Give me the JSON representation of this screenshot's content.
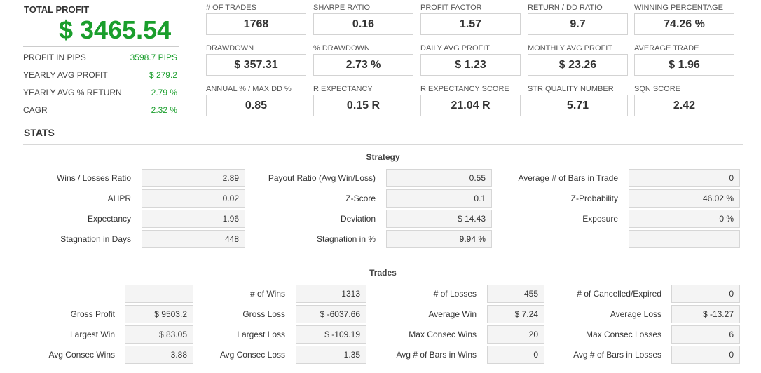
{
  "summary": {
    "total_profit_label": "TOTAL PROFIT",
    "total_profit_value": "$ 3465.54",
    "rows": [
      {
        "label": "PROFIT IN PIPS",
        "value": "3598.7 PIPS"
      },
      {
        "label": "YEARLY AVG PROFIT",
        "value": "$ 279.2"
      },
      {
        "label": "YEARLY AVG % RETURN",
        "value": "2.79 %"
      },
      {
        "label": "CAGR",
        "value": "2.32 %"
      }
    ]
  },
  "metrics": [
    [
      {
        "label": "# OF TRADES",
        "value": "1768"
      },
      {
        "label": "SHARPE RATIO",
        "value": "0.16"
      },
      {
        "label": "PROFIT FACTOR",
        "value": "1.57"
      },
      {
        "label": "RETURN / DD RATIO",
        "value": "9.7"
      },
      {
        "label": "WINNING PERCENTAGE",
        "value": "74.26 %"
      }
    ],
    [
      {
        "label": "DRAWDOWN",
        "value": "$ 357.31"
      },
      {
        "label": "% DRAWDOWN",
        "value": "2.73 %"
      },
      {
        "label": "DAILY AVG PROFIT",
        "value": "$ 1.23"
      },
      {
        "label": "MONTHLY AVG PROFIT",
        "value": "$ 23.26"
      },
      {
        "label": "AVERAGE TRADE",
        "value": "$ 1.96"
      }
    ],
    [
      {
        "label": "ANNUAL % / MAX DD %",
        "value": "0.85"
      },
      {
        "label": "R EXPECTANCY",
        "value": "0.15 R"
      },
      {
        "label": "R EXPECTANCY SCORE",
        "value": "21.04 R"
      },
      {
        "label": "STR QUALITY NUMBER",
        "value": "5.71"
      },
      {
        "label": "SQN SCORE",
        "value": "2.42"
      }
    ]
  ],
  "stats_title": "STATS",
  "strategy": {
    "title": "Strategy",
    "rows": [
      [
        {
          "label": "Wins / Losses Ratio",
          "value": "2.89"
        },
        {
          "label": "Payout Ratio (Avg Win/Loss)",
          "value": "0.55"
        },
        {
          "label": "Average # of Bars in Trade",
          "value": "0"
        }
      ],
      [
        {
          "label": "AHPR",
          "value": "0.02"
        },
        {
          "label": "Z-Score",
          "value": "0.1"
        },
        {
          "label": "Z-Probability",
          "value": "46.02 %"
        }
      ],
      [
        {
          "label": "Expectancy",
          "value": "1.96"
        },
        {
          "label": "Deviation",
          "value": "$ 14.43"
        },
        {
          "label": "Exposure",
          "value": "0 %"
        }
      ],
      [
        {
          "label": "Stagnation in Days",
          "value": "448"
        },
        {
          "label": "Stagnation in %",
          "value": "9.94 %"
        },
        {
          "label": "",
          "value": ""
        }
      ]
    ]
  },
  "trades": {
    "title": "Trades",
    "rows": [
      [
        {
          "label": "",
          "value": ""
        },
        {
          "label": "# of Wins",
          "value": "1313"
        },
        {
          "label": "# of Losses",
          "value": "455"
        },
        {
          "label": "# of Cancelled/Expired",
          "value": "0"
        }
      ],
      [
        {
          "label": "Gross Profit",
          "value": "$ 9503.2"
        },
        {
          "label": "Gross Loss",
          "value": "$ -6037.66"
        },
        {
          "label": "Average Win",
          "value": "$ 7.24"
        },
        {
          "label": "Average Loss",
          "value": "$ -13.27"
        }
      ],
      [
        {
          "label": "Largest Win",
          "value": "$ 83.05"
        },
        {
          "label": "Largest Loss",
          "value": "$ -109.19"
        },
        {
          "label": "Max Consec Wins",
          "value": "20"
        },
        {
          "label": "Max Consec Losses",
          "value": "6"
        }
      ],
      [
        {
          "label": "Avg Consec Wins",
          "value": "3.88"
        },
        {
          "label": "Avg Consec Loss",
          "value": "1.35"
        },
        {
          "label": "Avg # of Bars in Wins",
          "value": "0"
        },
        {
          "label": "Avg # of Bars in Losses",
          "value": "0"
        }
      ]
    ]
  },
  "colors": {
    "accent_green": "#1a9e2c"
  }
}
